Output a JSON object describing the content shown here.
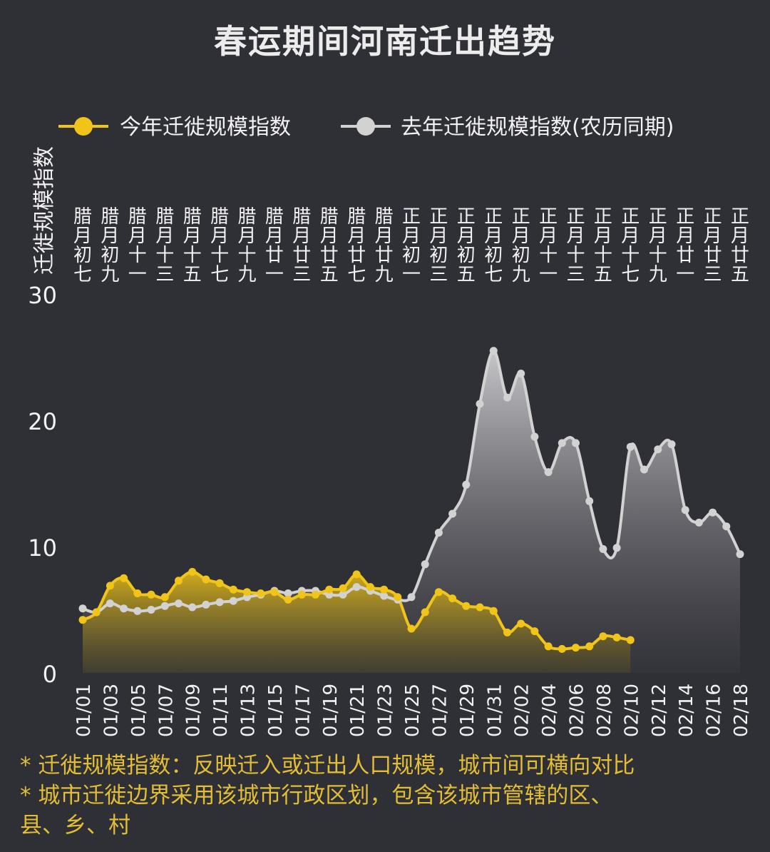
{
  "chart_data": {
    "type": "area",
    "title": "春运期间河南迁出趋势",
    "ylabel": "迁徙规模指数",
    "ylim": [
      0,
      30
    ],
    "yticks": [
      0,
      10,
      20,
      30
    ],
    "grid": false,
    "legend_position": "top",
    "x_dates": [
      "01/01",
      "01/02",
      "01/03",
      "01/04",
      "01/05",
      "01/06",
      "01/07",
      "01/08",
      "01/09",
      "01/10",
      "01/11",
      "01/12",
      "01/13",
      "01/14",
      "01/15",
      "01/16",
      "01/17",
      "01/18",
      "01/19",
      "01/20",
      "01/21",
      "01/22",
      "01/23",
      "01/24",
      "01/25",
      "01/26",
      "01/27",
      "01/28",
      "01/29",
      "01/30",
      "01/31",
      "02/01",
      "02/02",
      "02/03",
      "02/04",
      "02/05",
      "02/06",
      "02/07",
      "02/08",
      "02/09",
      "02/10",
      "02/11",
      "02/12",
      "02/13",
      "02/14",
      "02/15",
      "02/16",
      "02/17",
      "02/18"
    ],
    "x_tick_labels": [
      "01/01",
      "01/03",
      "01/05",
      "01/07",
      "01/09",
      "01/11",
      "01/13",
      "01/15",
      "01/17",
      "01/19",
      "01/21",
      "01/23",
      "01/25",
      "01/27",
      "01/29",
      "01/31",
      "02/02",
      "02/04",
      "02/06",
      "02/08",
      "02/10",
      "02/12",
      "02/14",
      "02/16",
      "02/18"
    ],
    "lunar_tick_labels": [
      "腊月初七",
      "腊月初九",
      "腊月十一",
      "腊月十三",
      "腊月十五",
      "腊月十七",
      "腊月十九",
      "腊月廿一",
      "腊月廿三",
      "腊月廿五",
      "腊月廿七",
      "腊月廿九",
      "正月初一",
      "正月初三",
      "正月初五",
      "正月初七",
      "正月初九",
      "正月十一",
      "正月十三",
      "正月十五",
      "正月十七",
      "正月十九",
      "正月廿一",
      "正月廿三",
      "正月廿五"
    ],
    "series": [
      {
        "name": "今年迁徙规模指数",
        "color": "#f0c419",
        "values": [
          4.2,
          4.8,
          6.9,
          7.5,
          6.3,
          6.2,
          6.0,
          7.3,
          8.0,
          7.4,
          7.1,
          6.6,
          6.4,
          6.3,
          6.4,
          5.8,
          6.2,
          6.2,
          6.6,
          6.7,
          7.8,
          6.8,
          6.6,
          6.0,
          3.5,
          4.8,
          6.4,
          5.9,
          5.3,
          5.2,
          4.9,
          3.2,
          3.9,
          3.3,
          2.1,
          1.9,
          2.0,
          2.1,
          2.9,
          2.8,
          2.6
        ]
      },
      {
        "name": "去年迁徙规模指数(农历同期)",
        "color": "#d2d2d2",
        "values": [
          5.1,
          4.8,
          5.5,
          5.1,
          4.9,
          5.0,
          5.3,
          5.5,
          5.2,
          5.4,
          5.6,
          5.7,
          6.0,
          6.2,
          6.5,
          6.3,
          6.5,
          6.5,
          6.2,
          6.2,
          6.8,
          6.5,
          6.1,
          5.8,
          6.0,
          8.6,
          11.1,
          12.6,
          14.9,
          21.3,
          25.5,
          21.8,
          23.7,
          18.7,
          15.9,
          18.2,
          18.2,
          13.6,
          9.8,
          9.9,
          17.9,
          16.1,
          17.7,
          18.1,
          12.9,
          11.9,
          12.7,
          11.6,
          9.4
        ]
      }
    ]
  },
  "footnotes": [
    "* 迁徙规模指数：反映迁入或迁出人口规模，城市间可横向对比",
    "* 城市迁徙边界采用该城市行政区划，包含该城市管辖的区、",
    "县、乡、村"
  ]
}
